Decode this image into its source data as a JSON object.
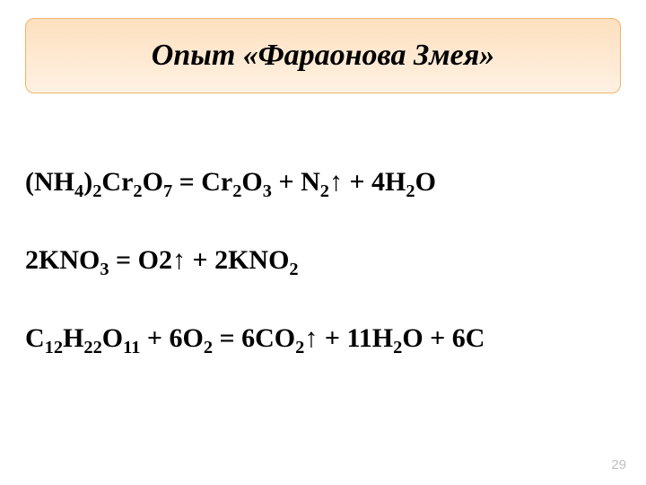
{
  "title": {
    "text": "Опыт «Фараонова Змея»",
    "fontsize": 34,
    "color": "#000000",
    "box": {
      "bg_top": "#fde0bf",
      "bg_bottom": "#fef1e3",
      "border_color": "#f0b46d"
    }
  },
  "equations": {
    "fontsize": 30,
    "color": "#000000",
    "gap": 54,
    "items": [
      "(NH<sub>4</sub>)<sub>2</sub>Cr<sub>2</sub>O<sub>7</sub> = Cr<sub>2</sub>O<sub>3</sub> + N<sub>2</sub>↑ + 4H<sub>2</sub>O",
      "2KNO<sub>3</sub> = O2↑ + 2KNO<sub>2</sub>",
      "C<sub>12</sub>H<sub>22</sub>O<sub>11</sub> + 6O<sub>2</sub> = 6CO<sub>2</sub>↑ + 11H<sub>2</sub>O + 6C"
    ]
  },
  "page_number": {
    "value": "29",
    "fontsize": 15,
    "color": "#bfbfbf"
  }
}
